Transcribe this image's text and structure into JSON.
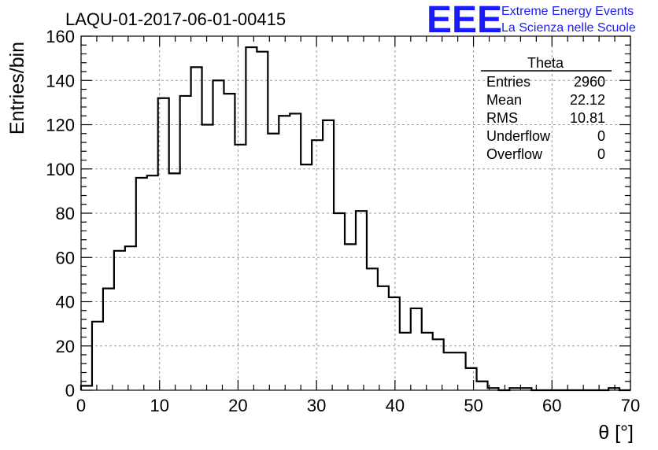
{
  "chart_data": {
    "type": "bar",
    "title": "LAQU-01-2017-06-01-00415",
    "xlabel": "θ [°]",
    "ylabel": "Entries/bin",
    "xlim": [
      0,
      70
    ],
    "ylim": [
      0,
      160
    ],
    "xticks": [
      0,
      10,
      20,
      30,
      40,
      50,
      60,
      70
    ],
    "yticks": [
      0,
      20,
      40,
      60,
      80,
      100,
      120,
      140,
      160
    ],
    "grid": true,
    "bin_width": 1.4,
    "bin_edges_start": 0,
    "values": [
      2,
      31,
      46,
      63,
      65,
      96,
      97,
      132,
      98,
      133,
      146,
      120,
      140,
      134,
      111,
      155,
      153,
      116,
      124,
      125,
      102,
      113,
      122,
      80,
      66,
      81,
      55,
      47,
      42,
      26,
      37,
      26,
      23,
      17,
      17,
      10,
      4,
      1,
      0,
      1,
      1,
      0,
      0,
      0,
      0,
      0,
      0,
      0,
      1,
      0
    ],
    "color": "#000000"
  },
  "stats": {
    "title": "Theta",
    "rows": [
      {
        "label": "Entries",
        "value": "2960"
      },
      {
        "label": "Mean",
        "value": "22.12"
      },
      {
        "label": "RMS",
        "value": "10.81"
      },
      {
        "label": "Underflow",
        "value": "0"
      },
      {
        "label": "Overflow",
        "value": "0"
      }
    ]
  },
  "logo": {
    "mark": "EEE",
    "line1": "Extreme Energy Events",
    "line2": "La Scienza nelle Scuole",
    "color": "#1a1aff"
  }
}
